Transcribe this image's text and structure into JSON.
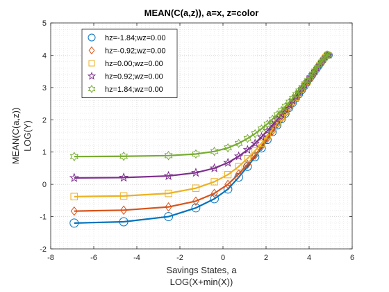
{
  "chart_data": {
    "type": "line",
    "title": "MEAN(C(a,z)), a=x, z=color",
    "xlabel": [
      "Savings States, a",
      "LOG(X+min(X))"
    ],
    "ylabel": [
      "MEAN(C(a,z))",
      "LOG(Y)"
    ],
    "xlim": [
      -8,
      6
    ],
    "ylim": [
      -2,
      5
    ],
    "xticks": [
      -8,
      -6,
      -4,
      -2,
      0,
      2,
      4,
      6
    ],
    "yticks": [
      -2,
      -1,
      0,
      1,
      2,
      3,
      4,
      5
    ],
    "grid": "major and minor, dotted",
    "legend_position": "top-left",
    "series": [
      {
        "name": "hz=-1.84;wz=0.00",
        "color": "#0072BD",
        "marker": "circle",
        "x": [
          -6.91,
          -4.61,
          -2.53,
          -1.26,
          -0.4,
          0.23,
          0.73,
          1.14,
          1.49,
          1.79,
          2.06,
          2.3,
          2.52,
          2.72,
          2.9,
          3.08,
          3.24,
          3.39,
          3.53,
          3.67,
          3.8,
          3.92,
          4.04,
          4.15,
          4.26,
          4.37,
          4.47,
          4.57,
          4.66,
          4.75,
          4.84,
          4.93
        ],
        "y": [
          -1.2,
          -1.16,
          -1.0,
          -0.73,
          -0.45,
          -0.15,
          0.22,
          0.55,
          0.85,
          1.12,
          1.38,
          1.62,
          1.83,
          2.02,
          2.19,
          2.37,
          2.52,
          2.66,
          2.79,
          2.92,
          3.05,
          3.16,
          3.28,
          3.38,
          3.48,
          3.59,
          3.68,
          3.77,
          3.86,
          3.94,
          4.02,
          4.0
        ]
      },
      {
        "name": "hz=-0.92;wz=0.00",
        "color": "#D95319",
        "marker": "diamond",
        "x": [
          -6.91,
          -4.61,
          -2.53,
          -1.26,
          -0.4,
          0.23,
          0.73,
          1.14,
          1.49,
          1.79,
          2.06,
          2.3,
          2.52,
          2.72,
          2.9,
          3.08,
          3.24,
          3.39,
          3.53,
          3.67,
          3.8,
          3.92,
          4.04,
          4.15,
          4.26,
          4.37,
          4.47,
          4.57,
          4.66,
          4.75,
          4.84,
          4.93
        ],
        "y": [
          -0.83,
          -0.8,
          -0.7,
          -0.52,
          -0.28,
          0.0,
          0.32,
          0.62,
          0.9,
          1.17,
          1.42,
          1.65,
          1.86,
          2.04,
          2.21,
          2.38,
          2.53,
          2.67,
          2.8,
          2.93,
          3.06,
          3.17,
          3.28,
          3.39,
          3.49,
          3.59,
          3.68,
          3.78,
          3.86,
          3.94,
          4.02,
          4.0
        ]
      },
      {
        "name": "hz=0.00;wz=0.00",
        "color": "#EDB120",
        "marker": "square",
        "x": [
          -6.91,
          -4.61,
          -2.53,
          -1.26,
          -0.4,
          0.23,
          0.73,
          1.14,
          1.49,
          1.79,
          2.06,
          2.3,
          2.52,
          2.72,
          2.9,
          3.08,
          3.24,
          3.39,
          3.53,
          3.67,
          3.8,
          3.92,
          4.04,
          4.15,
          4.26,
          4.37,
          4.47,
          4.57,
          4.66,
          4.75,
          4.84,
          4.93
        ],
        "y": [
          -0.38,
          -0.36,
          -0.28,
          -0.12,
          0.08,
          0.3,
          0.55,
          0.8,
          1.04,
          1.27,
          1.5,
          1.71,
          1.9,
          2.08,
          2.25,
          2.41,
          2.55,
          2.69,
          2.82,
          2.95,
          3.07,
          3.18,
          3.29,
          3.39,
          3.49,
          3.59,
          3.69,
          3.78,
          3.86,
          3.94,
          4.02,
          4.0
        ]
      },
      {
        "name": "hz=0.92;wz=0.00",
        "color": "#7E2F8E",
        "marker": "pentagram",
        "x": [
          -6.91,
          -4.61,
          -2.53,
          -1.26,
          -0.4,
          0.23,
          0.73,
          1.14,
          1.49,
          1.79,
          2.06,
          2.3,
          2.52,
          2.72,
          2.9,
          3.08,
          3.24,
          3.39,
          3.53,
          3.67,
          3.8,
          3.92,
          4.04,
          4.15,
          4.26,
          4.37,
          4.47,
          4.57,
          4.66,
          4.75,
          4.84,
          4.93
        ],
        "y": [
          0.2,
          0.21,
          0.26,
          0.36,
          0.5,
          0.67,
          0.87,
          1.07,
          1.27,
          1.47,
          1.66,
          1.84,
          2.01,
          2.17,
          2.32,
          2.46,
          2.59,
          2.72,
          2.85,
          2.97,
          3.08,
          3.19,
          3.3,
          3.4,
          3.5,
          3.6,
          3.69,
          3.78,
          3.86,
          3.94,
          4.02,
          4.0
        ]
      },
      {
        "name": "hz=1.84;wz=0.00",
        "color": "#77AC30",
        "marker": "hexagram",
        "x": [
          -6.91,
          -4.61,
          -2.53,
          -1.26,
          -0.4,
          0.23,
          0.73,
          1.14,
          1.49,
          1.79,
          2.06,
          2.3,
          2.52,
          2.72,
          2.9,
          3.08,
          3.24,
          3.39,
          3.53,
          3.67,
          3.8,
          3.92,
          4.04,
          4.15,
          4.26,
          4.37,
          4.47,
          4.57,
          4.66,
          4.75,
          4.84,
          4.93
        ],
        "y": [
          0.86,
          0.87,
          0.89,
          0.94,
          1.02,
          1.13,
          1.27,
          1.42,
          1.57,
          1.72,
          1.87,
          2.02,
          2.16,
          2.29,
          2.42,
          2.55,
          2.67,
          2.79,
          2.9,
          3.01,
          3.12,
          3.22,
          3.32,
          3.42,
          3.52,
          3.61,
          3.7,
          3.79,
          3.87,
          3.95,
          4.03,
          4.0
        ]
      }
    ]
  }
}
